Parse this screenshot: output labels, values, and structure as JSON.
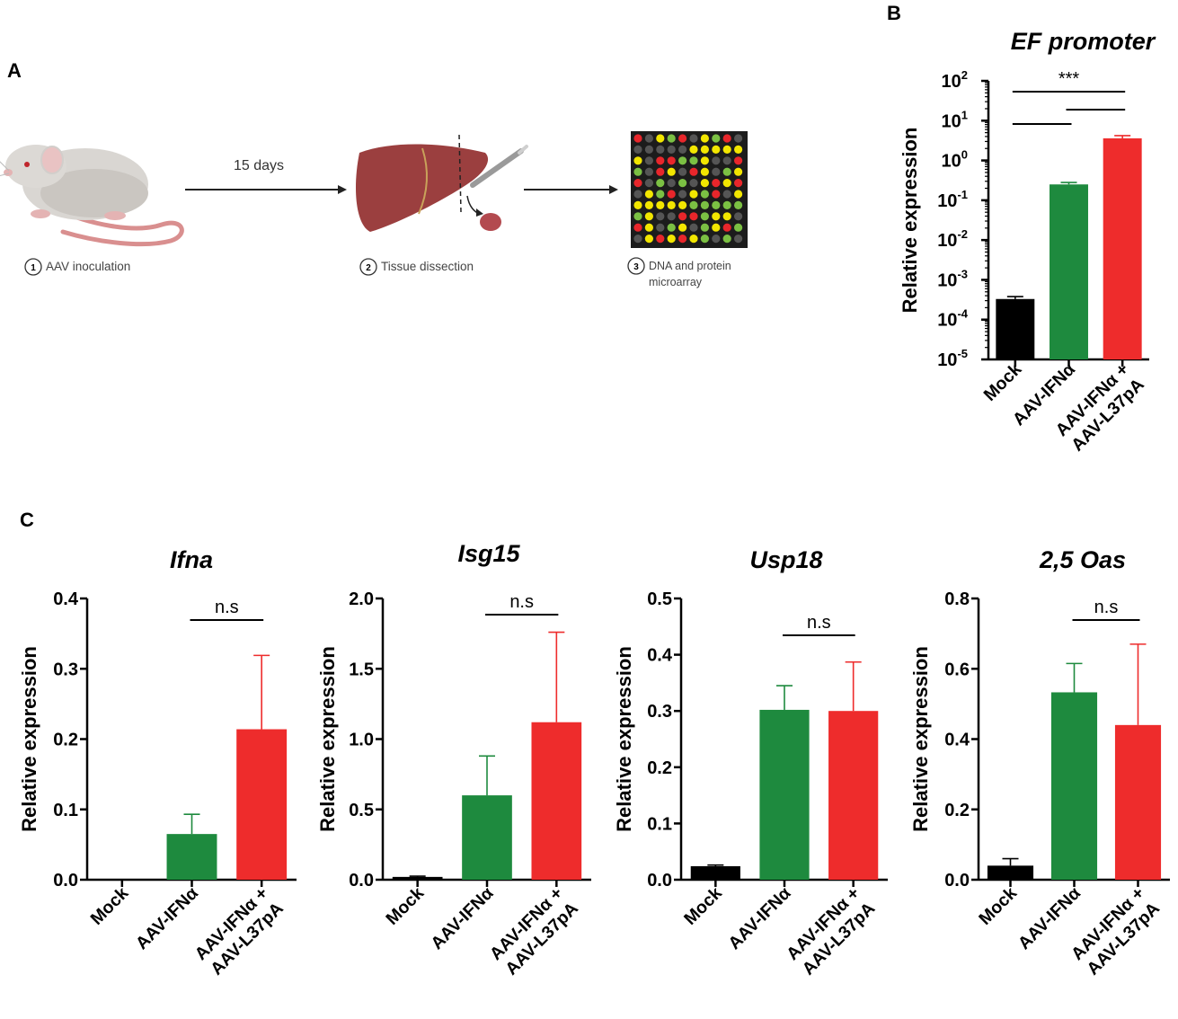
{
  "panels": {
    "a": "A",
    "b": "B",
    "c": "C"
  },
  "schematic": {
    "arrow_label": "15 days",
    "steps": [
      {
        "num": "1",
        "label": "AAV inoculation"
      },
      {
        "num": "2",
        "label": "Tissue dissection"
      },
      {
        "num": "3",
        "label": "DNA and protein",
        "label2": "microarray"
      }
    ],
    "colors": {
      "mouse_body": "#d9d6d2",
      "mouse_tail": "#d98f8f",
      "liver": "#9b3f3f",
      "microarray_bg": "#1c1c1c",
      "dot_red": "#e8262b",
      "dot_green": "#7bc043",
      "dot_yellow": "#f2e600",
      "dot_gray": "#555555"
    }
  },
  "chart_data": [
    {
      "type": "bar",
      "title": "EF promoter",
      "ylabel": "Relative expression",
      "yscale": "log",
      "ylim": [
        -5,
        2
      ],
      "yticks": [
        {
          "base": "10",
          "exp": "2"
        },
        {
          "base": "10",
          "exp": "1"
        },
        {
          "base": "10",
          "exp": "0"
        },
        {
          "base": "10",
          "exp": "-1"
        },
        {
          "base": "10",
          "exp": "-2"
        },
        {
          "base": "10",
          "exp": "-3"
        },
        {
          "base": "10",
          "exp": "-4"
        },
        {
          "base": "10",
          "exp": "-5"
        }
      ],
      "categories": [
        {
          "label": "Mock",
          "label2": ""
        },
        {
          "label": "AAV-IFNα",
          "label2": ""
        },
        {
          "label": "AAV-IFNα +",
          "label2": "AAV-L37pA"
        }
      ],
      "values": [
        0.00033,
        0.25,
        3.6
      ],
      "errors": [
        5e-05,
        0.03,
        0.6
      ],
      "colors": [
        "#000000",
        "#1e8a3e",
        "#ee2c2c"
      ],
      "significance": [
        {
          "from": 0,
          "to": 2,
          "label": "***"
        },
        {
          "from": 0,
          "to": 1,
          "label": ""
        },
        {
          "from": 1,
          "to": 2,
          "label": ""
        }
      ]
    },
    {
      "type": "bar",
      "title": "Ifna",
      "ylabel": "Relative expression",
      "yscale": "linear",
      "ylim": [
        0,
        0.4
      ],
      "yticks": [
        "0.0",
        "0.1",
        "0.2",
        "0.3",
        "0.4"
      ],
      "categories": [
        {
          "label": "Mock",
          "label2": ""
        },
        {
          "label": "AAV-IFNα",
          "label2": ""
        },
        {
          "label": "AAV-IFNα +",
          "label2": "AAV-L37pA"
        }
      ],
      "values": [
        0.0,
        0.065,
        0.214
      ],
      "errors": [
        0.0,
        0.028,
        0.105
      ],
      "colors": [
        "#000000",
        "#1e8a3e",
        "#ee2c2c"
      ],
      "significance": [
        {
          "from": 1,
          "to": 2,
          "label": "n.s"
        }
      ]
    },
    {
      "type": "bar",
      "title": "Isg15",
      "ylabel": "Relative expression",
      "yscale": "linear",
      "ylim": [
        0,
        2.0
      ],
      "yticks": [
        "0.0",
        "0.5",
        "1.0",
        "1.5",
        "2.0"
      ],
      "categories": [
        {
          "label": "Mock",
          "label2": ""
        },
        {
          "label": "AAV-IFNα",
          "label2": ""
        },
        {
          "label": "AAV-IFNα +",
          "label2": "AAV-L37pA"
        }
      ],
      "values": [
        0.02,
        0.6,
        1.12
      ],
      "errors": [
        0.005,
        0.28,
        0.64
      ],
      "colors": [
        "#000000",
        "#1e8a3e",
        "#ee2c2c"
      ],
      "significance": [
        {
          "from": 1,
          "to": 2,
          "label": "n.s"
        }
      ]
    },
    {
      "type": "bar",
      "title": "Usp18",
      "ylabel": "Relative expression",
      "yscale": "linear",
      "ylim": [
        0,
        0.5
      ],
      "yticks": [
        "0.0",
        "0.1",
        "0.2",
        "0.3",
        "0.4",
        "0.5"
      ],
      "categories": [
        {
          "label": "Mock",
          "label2": ""
        },
        {
          "label": "AAV-IFNα",
          "label2": ""
        },
        {
          "label": "AAV-IFNα +",
          "label2": "AAV-L37pA"
        }
      ],
      "values": [
        0.024,
        0.302,
        0.3
      ],
      "errors": [
        0.002,
        0.043,
        0.087
      ],
      "colors": [
        "#000000",
        "#1e8a3e",
        "#ee2c2c"
      ],
      "significance": [
        {
          "from": 1,
          "to": 2,
          "label": "n.s"
        }
      ]
    },
    {
      "type": "bar",
      "title": "2,5 Oas",
      "ylabel": "Relative expression",
      "yscale": "linear",
      "ylim": [
        0,
        0.8
      ],
      "yticks": [
        "0.0",
        "0.2",
        "0.4",
        "0.6",
        "0.8"
      ],
      "categories": [
        {
          "label": "Mock",
          "label2": ""
        },
        {
          "label": "AAV-IFNα",
          "label2": ""
        },
        {
          "label": "AAV-IFNα +",
          "label2": "AAV-L37pA"
        }
      ],
      "values": [
        0.04,
        0.533,
        0.44
      ],
      "errors": [
        0.02,
        0.082,
        0.23
      ],
      "colors": [
        "#000000",
        "#1e8a3e",
        "#ee2c2c"
      ],
      "significance": [
        {
          "from": 1,
          "to": 2,
          "label": "n.s"
        }
      ]
    }
  ]
}
